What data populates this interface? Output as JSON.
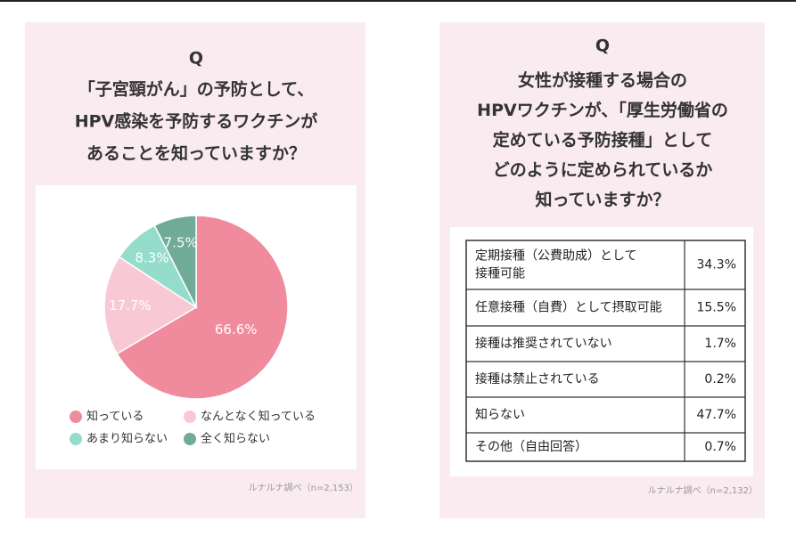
{
  "chart_data": {
    "type": "pie",
    "title": "Q",
    "question": [
      "「子宮頸がん」の予防として、",
      "HPV感染を予防するワクチンが",
      "あることを知っていますか？"
    ],
    "categories": [
      "知っている",
      "なんとなく知っている",
      "あまり知らない",
      "全く知らない"
    ],
    "values": [
      66.6,
      17.7,
      8.3,
      7.5
    ],
    "value_labels": [
      "66.6%",
      "17.7%",
      "8.3%",
      "7.5%"
    ],
    "colors": [
      "#ef8b9c",
      "#f8c9d4",
      "#95dccb",
      "#6fab97"
    ],
    "note": "ルナルナ調べ（n=2,153）"
  },
  "right_panel": {
    "title": "Q",
    "question": [
      "女性が接種する場合の",
      "HPVワクチンが、「厚生労働省の",
      "定めている予防接種」として",
      "どのように定められているか",
      "知っていますか？"
    ],
    "table": {
      "rows": [
        [
          [
            "定期接種（公費助成）として",
            "接種可能"
          ],
          "34.3%"
        ],
        [
          [
            "任意接種（自費）として摂取可能"
          ],
          "15.5%"
        ],
        [
          [
            "接種は推奨されていない"
          ],
          "1.7%"
        ],
        [
          [
            "接種は禁止されている"
          ],
          "0.2%"
        ],
        [
          [
            "知らない"
          ],
          "47.7%"
        ],
        [
          [
            "その他（自由回答）"
          ],
          "0.7%"
        ]
      ]
    },
    "note": "ルナルナ調べ（n=2,132）"
  }
}
